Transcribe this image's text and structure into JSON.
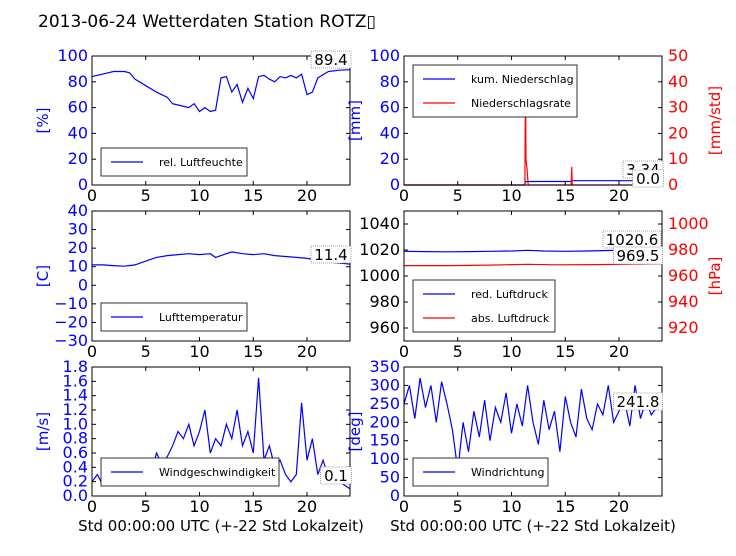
{
  "title": "2013-06-24 Wetterdaten Station ROTZ▯",
  "xlabel": "Std 00:00:00 UTC (+-22 Std Lokalzeit)",
  "colors": {
    "primary": "#0000ff",
    "secondary": "#ff0000",
    "text": "#000000"
  },
  "chart_data": [
    {
      "type": "line",
      "ylabel": "[%]",
      "xlim": [
        0,
        24
      ],
      "ylim": [
        0,
        100
      ],
      "xticks": [
        "0",
        "5",
        "10",
        "15",
        "20"
      ],
      "yticks": [
        "0",
        "20",
        "40",
        "60",
        "80",
        "100"
      ],
      "legend": {
        "position": "lower-left"
      },
      "annotation": "89.4",
      "series": [
        {
          "name": "rel. Luftfeuchte",
          "color": "#0000ff",
          "x": [
            0,
            1,
            2,
            3,
            3.5,
            4,
            5,
            6,
            7,
            7.5,
            8,
            9,
            9.5,
            10,
            10.5,
            11,
            11.5,
            12,
            12.5,
            13,
            13.5,
            14,
            14.5,
            15,
            15.5,
            16,
            16.5,
            17,
            17.5,
            18,
            18.5,
            19,
            19.5,
            20,
            20.5,
            21,
            22,
            23,
            24
          ],
          "y": [
            84,
            86,
            88,
            88,
            87,
            82,
            77,
            72,
            68,
            63,
            62,
            60,
            63,
            57,
            60,
            57,
            58,
            83,
            84,
            72,
            78,
            64,
            75,
            67,
            84,
            85,
            82,
            80,
            84,
            83,
            85,
            83,
            86,
            70,
            72,
            83,
            88,
            89,
            89.4
          ]
        }
      ]
    },
    {
      "type": "line",
      "ylabel": "[mm]",
      "ylabel2": "[mm/std]",
      "xlim": [
        0,
        24
      ],
      "ylim": [
        0,
        100
      ],
      "ylim2": [
        0,
        50
      ],
      "xticks": [
        "0",
        "5",
        "10",
        "15",
        "20"
      ],
      "yticks": [
        "0",
        "20",
        "40",
        "60",
        "80",
        "100"
      ],
      "yticks2": [
        "0",
        "10",
        "20",
        "30",
        "40",
        "50"
      ],
      "legend": {
        "position": "upper-left"
      },
      "annotations": [
        "3.34",
        "0.0"
      ],
      "series": [
        {
          "name": "kum. Niederschlag",
          "color": "#0000ff",
          "axis": "left",
          "x": [
            0,
            11.2,
            11.3,
            11.5,
            15.5,
            15.6,
            24
          ],
          "y": [
            0,
            0,
            2.5,
            2.7,
            2.7,
            3.34,
            3.34
          ]
        },
        {
          "name": "Niederschlagsrate",
          "color": "#ff0000",
          "axis": "right",
          "x": [
            0,
            11.25,
            11.3,
            11.35,
            11.45,
            11.55,
            15.55,
            15.6,
            15.65,
            24
          ],
          "y": [
            0,
            0,
            42,
            10,
            6,
            0,
            0,
            7,
            0,
            0
          ]
        }
      ]
    },
    {
      "type": "line",
      "ylabel": "[C]",
      "xlim": [
        0,
        24
      ],
      "ylim": [
        -30,
        40
      ],
      "xticks": [
        "0",
        "5",
        "10",
        "15",
        "20"
      ],
      "yticks": [
        "−30",
        "−20",
        "−10",
        "0",
        "10",
        "20",
        "30",
        "40"
      ],
      "legend": {
        "position": "lower-left"
      },
      "annotation": "11.4",
      "series": [
        {
          "name": "Lufttemperatur",
          "color": "#0000ff",
          "x": [
            0,
            1,
            2,
            3,
            4,
            5,
            6,
            7,
            8,
            9,
            10,
            11,
            11.5,
            12,
            13,
            14,
            15,
            16,
            17,
            18,
            19,
            20,
            21,
            22,
            23,
            24
          ],
          "y": [
            11,
            11,
            10.6,
            10.3,
            11,
            13,
            15,
            16,
            16.5,
            17,
            16.5,
            17,
            15,
            16,
            18,
            17,
            16.5,
            17,
            16,
            15.5,
            15,
            14.5,
            13.5,
            12.5,
            12,
            11.4
          ]
        }
      ]
    },
    {
      "type": "line",
      "ylabel2": "[hPa]",
      "xlim": [
        0,
        24
      ],
      "ylim": [
        950,
        1050
      ],
      "ylim2": [
        910,
        1010
      ],
      "xticks": [
        "0",
        "5",
        "10",
        "15",
        "20"
      ],
      "yticks": [
        "960",
        "980",
        "1000",
        "1020",
        "1040"
      ],
      "yticks2": [
        "920",
        "940",
        "960",
        "980",
        "1000"
      ],
      "legend": {
        "position": "lower-left"
      },
      "annotations": [
        "1020.6",
        "969.5"
      ],
      "series": [
        {
          "name": "red. Luftdruck",
          "color": "#0000ff",
          "axis": "left",
          "x": [
            0,
            2,
            4,
            6,
            8,
            10,
            11.5,
            13,
            15,
            17,
            19,
            21,
            24
          ],
          "y": [
            1019,
            1018.8,
            1018.6,
            1018.8,
            1019,
            1019.2,
            1019.8,
            1019.2,
            1019,
            1019.2,
            1019.6,
            1020,
            1020.6
          ]
        },
        {
          "name": "abs. Luftdruck",
          "color": "#ff0000",
          "axis": "right",
          "x": [
            0,
            4,
            8,
            11.5,
            14,
            18,
            22,
            24
          ],
          "y": [
            968,
            968,
            968.4,
            969,
            968.6,
            968.8,
            969.2,
            969.5
          ]
        }
      ]
    },
    {
      "type": "line",
      "ylabel": "[m/s]",
      "xlim": [
        0,
        24
      ],
      "ylim": [
        0,
        1.8
      ],
      "xticks": [
        "0",
        "5",
        "10",
        "15",
        "20"
      ],
      "yticks": [
        "0.0",
        "0.2",
        "0.4",
        "0.6",
        "0.8",
        "1.0",
        "1.2",
        "1.4",
        "1.6",
        "1.8"
      ],
      "legend": {
        "position": "lower-left"
      },
      "annotation": "0.1",
      "series": [
        {
          "name": "Windgeschwindigkeit",
          "color": "#0000ff",
          "x": [
            0,
            0.5,
            1,
            1.5,
            2,
            2.5,
            3,
            3.5,
            4,
            4.5,
            5,
            5.5,
            6,
            6.5,
            7,
            7.5,
            8,
            8.5,
            9,
            9.5,
            10,
            10.5,
            11,
            11.5,
            12,
            12.5,
            13,
            13.5,
            14,
            14.5,
            15,
            15.5,
            16,
            16.5,
            17,
            17.5,
            18,
            18.5,
            19,
            19.5,
            20,
            20.5,
            21,
            21.5,
            22,
            22.5,
            23,
            23.5,
            24
          ],
          "y": [
            0.2,
            0.3,
            0.15,
            0.2,
            0.25,
            0.15,
            0.2,
            0.15,
            0.3,
            0.35,
            0.5,
            0.3,
            0.6,
            0.45,
            0.55,
            0.7,
            0.9,
            0.8,
            1.0,
            0.7,
            0.9,
            1.2,
            0.6,
            0.8,
            0.7,
            1.0,
            0.8,
            1.2,
            0.7,
            0.9,
            0.6,
            1.65,
            0.5,
            0.7,
            0.4,
            0.5,
            0.3,
            0.2,
            0.3,
            1.3,
            0.5,
            0.8,
            0.3,
            0.5,
            0.25,
            0.3,
            0.2,
            0.15,
            0.1
          ]
        }
      ]
    },
    {
      "type": "line",
      "ylabel": "[deg]",
      "xlim": [
        0,
        24
      ],
      "ylim": [
        0,
        350
      ],
      "xticks": [
        "0",
        "5",
        "10",
        "15",
        "20"
      ],
      "yticks": [
        "0",
        "50",
        "100",
        "150",
        "200",
        "250",
        "300",
        "350"
      ],
      "legend": {
        "position": "lower-left"
      },
      "annotation": "241.8",
      "series": [
        {
          "name": "Windrichtung",
          "color": "#0000ff",
          "x": [
            0,
            0.5,
            1,
            1.5,
            2,
            2.5,
            3,
            3.5,
            4,
            4.5,
            5,
            5.5,
            6,
            6.5,
            7,
            7.5,
            8,
            8.5,
            9,
            9.5,
            10,
            10.5,
            11,
            11.5,
            12,
            12.5,
            13,
            13.5,
            14,
            14.5,
            15,
            15.5,
            16,
            16.5,
            17,
            17.5,
            18,
            18.5,
            19,
            19.5,
            20,
            20.5,
            21,
            21.5,
            22,
            22.5,
            23,
            23.5,
            24
          ],
          "y": [
            250,
            300,
            210,
            320,
            240,
            300,
            200,
            310,
            250,
            180,
            70,
            200,
            120,
            230,
            160,
            260,
            150,
            240,
            200,
            280,
            170,
            250,
            190,
            300,
            200,
            140,
            260,
            180,
            230,
            120,
            270,
            200,
            160,
            290,
            210,
            180,
            250,
            220,
            300,
            200,
            230,
            260,
            190,
            300,
            210,
            260,
            220,
            240,
            241.8
          ]
        }
      ]
    }
  ]
}
